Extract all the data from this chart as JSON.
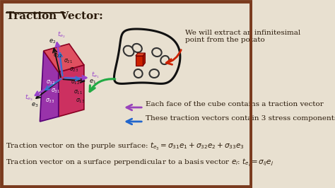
{
  "bg_color": "#e8e0d0",
  "border_color": "#7a3b1e",
  "title": "Traction Vector:",
  "title_fontsize": 11,
  "text_color": "#2a1a0a",
  "annotation1": "We will extract an infinitesimal\npoint from the potato",
  "annotation2": "Each face of the cube contains a traction vector",
  "annotation3": "These traction vectors contain 3 stress components",
  "bottom_line1": "Traction vector on the purple surface: $t_{e_3} = \\sigma_{31}e_1 + \\sigma_{32}e_2 + \\sigma_{33}e_3$",
  "bottom_line2": "Traction vector on a surface perpendicular to a basis vector $e_i$: $t_{e_i} = \\sigma_{ij}e_j$",
  "arrow_red": "#cc2200",
  "arrow_green": "#22aa44",
  "arrow_purple": "#9944bb",
  "arrow_blue": "#2266cc",
  "cube_top_color": "#e05060",
  "cube_right_color": "#cc4070",
  "cube_front_color": "#aa3599",
  "cube_left_color": "#8830a0",
  "cube_bottom_color": "#993db0",
  "cube_edge_color": "#550088",
  "traction_purple": "#9944cc",
  "comp_blue": "#3377cc",
  "axis_black": "#111111"
}
